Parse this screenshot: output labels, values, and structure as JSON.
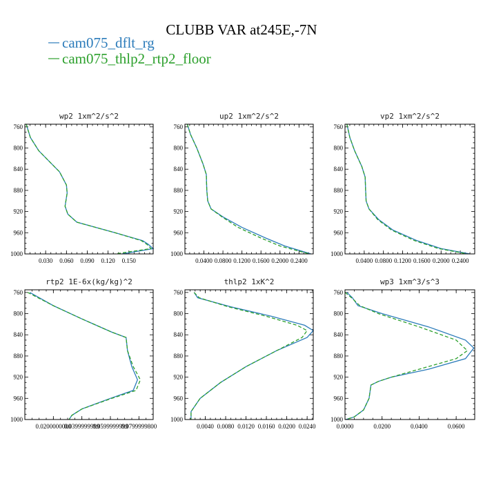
{
  "figure": {
    "title": "CLUBB VAR at245E,-7N"
  },
  "legend": [
    {
      "label": "cam075_dflt_rg",
      "color": "#2b7bba"
    },
    {
      "label": "cam075_thlp2_rtp2_floor",
      "color": "#2ca02c"
    }
  ],
  "chart_data": [
    {
      "type": "line",
      "title": "wp2  1xm^2/s^2",
      "xlim": [
        0,
        0.185
      ],
      "ylim": [
        1000,
        755
      ],
      "xticks": [
        0.03,
        0.06,
        0.09,
        0.12,
        0.15
      ],
      "xtick_labels": [
        "0.030",
        "0.060",
        "0.090",
        "0.120",
        "0.150"
      ],
      "yticks": [
        760,
        800,
        840,
        880,
        920,
        960,
        1000
      ],
      "series": [
        {
          "color": "#2b7bba",
          "dash": "none",
          "x": [
            0.002,
            0.008,
            0.02,
            0.05,
            0.06,
            0.061,
            0.058,
            0.062,
            0.075,
            0.13,
            0.17,
            0.178,
            0.185,
            0.14
          ],
          "y": [
            755,
            780,
            805,
            845,
            870,
            885,
            910,
            925,
            940,
            960,
            975,
            982,
            990,
            1000
          ]
        },
        {
          "color": "#2ca02c",
          "dash": "5,3",
          "x": [
            0.002,
            0.008,
            0.02,
            0.05,
            0.06,
            0.061,
            0.058,
            0.062,
            0.075,
            0.13,
            0.168,
            0.176,
            0.182,
            0.13
          ],
          "y": [
            755,
            780,
            805,
            845,
            870,
            885,
            910,
            925,
            940,
            960,
            975,
            982,
            990,
            1000
          ]
        }
      ]
    },
    {
      "type": "line",
      "title": "up2  1xm^2/s^2",
      "xlim": [
        0.0,
        0.27
      ],
      "ylim": [
        1000,
        755
      ],
      "xticks": [
        0.04,
        0.08,
        0.12,
        0.16,
        0.2,
        0.24
      ],
      "xtick_labels": [
        "0.0400",
        "0.0800",
        "0.1200",
        "0.1600",
        "0.2000",
        "0.2400"
      ],
      "yticks": [
        760,
        800,
        840,
        880,
        920,
        960,
        1000
      ],
      "series": [
        {
          "color": "#2b7bba",
          "dash": "none",
          "x": [
            0.005,
            0.012,
            0.025,
            0.038,
            0.045,
            0.046,
            0.048,
            0.055,
            0.08,
            0.12,
            0.17,
            0.21,
            0.265
          ],
          "y": [
            755,
            775,
            800,
            830,
            850,
            880,
            900,
            915,
            930,
            950,
            970,
            985,
            1000
          ]
        },
        {
          "color": "#2ca02c",
          "dash": "5,3",
          "x": [
            0.005,
            0.012,
            0.025,
            0.038,
            0.045,
            0.046,
            0.048,
            0.055,
            0.078,
            0.112,
            0.16,
            0.2,
            0.262
          ],
          "y": [
            755,
            775,
            800,
            830,
            850,
            880,
            900,
            915,
            930,
            950,
            970,
            985,
            1000
          ]
        }
      ]
    },
    {
      "type": "line",
      "title": "vp2  1xm^2/s^2",
      "xlim": [
        0.0,
        0.27
      ],
      "ylim": [
        1000,
        755
      ],
      "xticks": [
        0.04,
        0.08,
        0.12,
        0.16,
        0.2,
        0.24
      ],
      "xtick_labels": [
        "0.0400",
        "0.0800",
        "0.1200",
        "0.1600",
        "0.2000",
        "0.2400"
      ],
      "yticks": [
        760,
        800,
        840,
        880,
        920,
        960,
        1000
      ],
      "series": [
        {
          "color": "#2b7bba",
          "dash": "none",
          "x": [
            0.004,
            0.01,
            0.02,
            0.035,
            0.042,
            0.043,
            0.044,
            0.05,
            0.07,
            0.1,
            0.15,
            0.2,
            0.26
          ],
          "y": [
            755,
            780,
            805,
            835,
            855,
            880,
            900,
            915,
            935,
            955,
            975,
            990,
            1000
          ]
        },
        {
          "color": "#2ca02c",
          "dash": "5,3",
          "x": [
            0.004,
            0.01,
            0.02,
            0.035,
            0.042,
            0.043,
            0.044,
            0.05,
            0.068,
            0.097,
            0.145,
            0.195,
            0.255
          ],
          "y": [
            755,
            780,
            805,
            835,
            855,
            880,
            900,
            915,
            935,
            955,
            975,
            990,
            1000
          ]
        }
      ]
    },
    {
      "type": "line",
      "title": "rtp2  1E-6x(kg/kg)^2",
      "xlim": [
        0.0,
        9e-05
      ],
      "ylim": [
        1000,
        755
      ],
      "xticks": [
        2e-05,
        4e-05,
        6e-05,
        8e-05
      ],
      "xtick_labels": [
        "0.0200000000",
        "0.0399999999",
        "0.0599999999",
        "0.0799999800"
      ],
      "yticks": [
        760,
        800,
        840,
        880,
        920,
        960,
        1000
      ],
      "series": [
        {
          "color": "#2b7bba",
          "dash": "none",
          "x": [
            3.5e-06,
            2e-05,
            4e-05,
            6.1e-05,
            7.1e-05,
            7.2e-05,
            7.5e-05,
            7.9e-05,
            7.6e-05,
            6e-05,
            4e-05,
            3.3e-05,
            3.1e-05
          ],
          "y": [
            760,
            785,
            810,
            835,
            845,
            870,
            900,
            925,
            945,
            960,
            980,
            992,
            1000
          ]
        },
        {
          "color": "#2ca02c",
          "dash": "5,3",
          "x": [
            2e-06,
            2e-05,
            4e-05,
            6.1e-05,
            7.1e-05,
            7.2e-05,
            7.6e-05,
            8.1e-05,
            7.8e-05,
            6.1e-05,
            4e-05,
            3.3e-05,
            3.1e-05
          ],
          "y": [
            760,
            785,
            810,
            835,
            845,
            870,
            900,
            925,
            945,
            960,
            980,
            992,
            1000
          ]
        }
      ]
    },
    {
      "type": "line",
      "title": "thlp2  1xK^2",
      "xlim": [
        0.0,
        0.0252
      ],
      "ylim": [
        1000,
        755
      ],
      "xticks": [
        0.004,
        0.008,
        0.012,
        0.016,
        0.02,
        0.024
      ],
      "xtick_labels": [
        "0.0040",
        "0.0080",
        "0.0120",
        "0.0160",
        "0.0200",
        "0.0240"
      ],
      "yticks": [
        760,
        800,
        840,
        880,
        920,
        960,
        1000
      ],
      "series": [
        {
          "color": "#2b7bba",
          "dash": "none",
          "x": [
            0.0018,
            0.0025,
            0.009,
            0.017,
            0.0235,
            0.0252,
            0.024,
            0.018,
            0.012,
            0.007,
            0.003,
            0.0012,
            0.0012
          ],
          "y": [
            760,
            770,
            787,
            805,
            822,
            832,
            845,
            870,
            900,
            930,
            960,
            985,
            1000
          ]
        },
        {
          "color": "#2ca02c",
          "dash": "5,3",
          "x": [
            0.0018,
            0.0028,
            0.0085,
            0.016,
            0.022,
            0.024,
            0.023,
            0.018,
            0.012,
            0.007,
            0.003,
            0.0012,
            0.0012
          ],
          "y": [
            760,
            770,
            787,
            805,
            822,
            832,
            845,
            870,
            900,
            930,
            960,
            985,
            1000
          ]
        }
      ]
    },
    {
      "type": "line",
      "title": "wp3  1xm^3/s^3",
      "xlim": [
        0.0,
        0.07
      ],
      "ylim": [
        1000,
        755
      ],
      "xticks": [
        0.0,
        0.02,
        0.04,
        0.06
      ],
      "xtick_labels": [
        "0.0000",
        "0.0200",
        "0.0400",
        "0.0600"
      ],
      "yticks": [
        760,
        800,
        840,
        880,
        920,
        960,
        1000
      ],
      "series": [
        {
          "color": "#2b7bba",
          "dash": "none",
          "x": [
            0.001,
            0.004,
            0.007,
            0.02,
            0.045,
            0.065,
            0.0695,
            0.065,
            0.045,
            0.025,
            0.018,
            0.014,
            0.013,
            0.01,
            0.005,
            0.0005
          ],
          "y": [
            760,
            770,
            785,
            800,
            825,
            850,
            865,
            885,
            905,
            920,
            928,
            935,
            960,
            982,
            995,
            1000
          ]
        },
        {
          "color": "#2ca02c",
          "dash": "5,3",
          "x": [
            0.0,
            0.0035,
            0.008,
            0.018,
            0.04,
            0.06,
            0.066,
            0.06,
            0.04,
            0.025,
            0.018,
            0.014,
            0.013,
            0.01,
            0.005,
            0.0005
          ],
          "y": [
            760,
            770,
            785,
            800,
            825,
            850,
            870,
            885,
            905,
            920,
            928,
            935,
            960,
            982,
            995,
            1000
          ]
        }
      ]
    }
  ]
}
